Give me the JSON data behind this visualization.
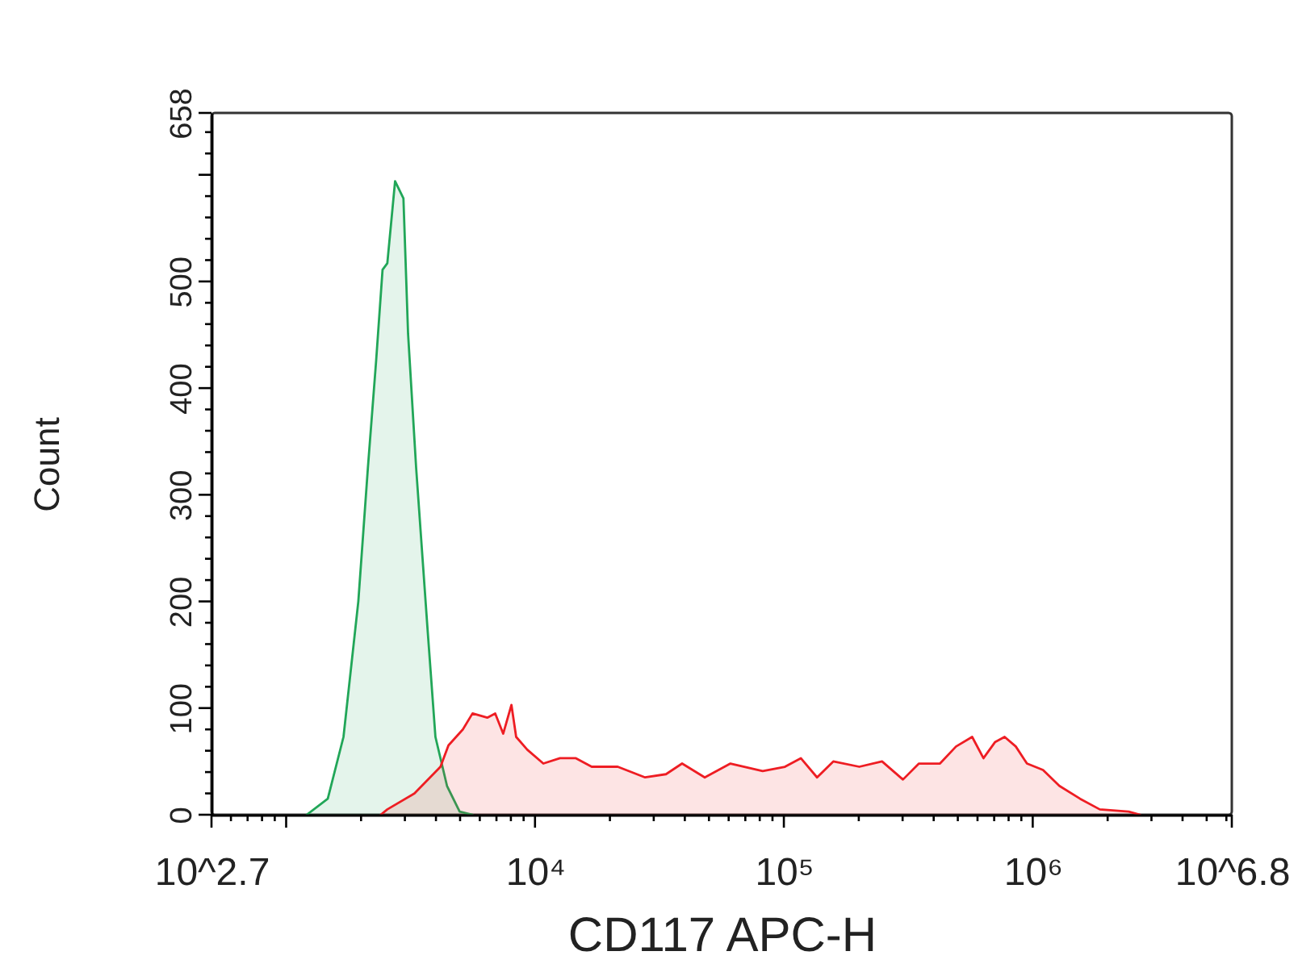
{
  "chart_data": {
    "type": "area",
    "xlabel": "CD117 APC-H",
    "ylabel": "Count",
    "log": "x",
    "xlim": [
      501.2,
      6309573
    ],
    "ylim": [
      0,
      658
    ],
    "xticks": [
      {
        "value": 501.2,
        "label": "10^2.7"
      },
      {
        "value": 600,
        "label": null
      },
      {
        "value": 700,
        "label": null
      },
      {
        "value": 800,
        "label": null
      },
      {
        "value": 900,
        "label": null
      },
      {
        "value": 1000,
        "label": null
      },
      {
        "value": 2000,
        "label": null
      },
      {
        "value": 3000,
        "label": null
      },
      {
        "value": 4000,
        "label": null
      },
      {
        "value": 5000,
        "label": null
      },
      {
        "value": 6000,
        "label": null
      },
      {
        "value": 7000,
        "label": null
      },
      {
        "value": 8000,
        "label": null
      },
      {
        "value": 9000,
        "label": null
      },
      {
        "value": 10000,
        "label": "10⁴"
      },
      {
        "value": 20000,
        "label": null
      },
      {
        "value": 30000,
        "label": null
      },
      {
        "value": 40000,
        "label": null
      },
      {
        "value": 50000,
        "label": null
      },
      {
        "value": 60000,
        "label": null
      },
      {
        "value": 70000,
        "label": null
      },
      {
        "value": 80000,
        "label": null
      },
      {
        "value": 90000,
        "label": null
      },
      {
        "value": 100000,
        "label": "10⁵"
      },
      {
        "value": 200000,
        "label": null
      },
      {
        "value": 300000,
        "label": null
      },
      {
        "value": 400000,
        "label": null
      },
      {
        "value": 500000,
        "label": null
      },
      {
        "value": 600000,
        "label": null
      },
      {
        "value": 700000,
        "label": null
      },
      {
        "value": 800000,
        "label": null
      },
      {
        "value": 900000,
        "label": null
      },
      {
        "value": 1000000,
        "label": "10⁶"
      },
      {
        "value": 2000000,
        "label": null
      },
      {
        "value": 3000000,
        "label": null
      },
      {
        "value": 4000000,
        "label": null
      },
      {
        "value": 5000000,
        "label": null
      },
      {
        "value": 6000000,
        "label": null
      },
      {
        "value": 6309573,
        "label": "10^6.8"
      }
    ],
    "yticks": [
      0,
      {
        "value": 20,
        "label": null
      },
      {
        "value": 40,
        "label": null
      },
      {
        "value": 60,
        "label": null
      },
      {
        "value": 80,
        "label": null
      },
      100,
      {
        "value": 120,
        "label": null
      },
      {
        "value": 140,
        "label": null
      },
      {
        "value": 160,
        "label": null
      },
      {
        "value": 180,
        "label": null
      },
      200,
      {
        "value": 220,
        "label": null
      },
      {
        "value": 240,
        "label": null
      },
      {
        "value": 260,
        "label": null
      },
      {
        "value": 280,
        "label": null
      },
      300,
      {
        "value": 320,
        "label": null
      },
      {
        "value": 340,
        "label": null
      },
      {
        "value": 360,
        "label": null
      },
      {
        "value": 380,
        "label": null
      },
      400,
      {
        "value": 420,
        "label": null
      },
      {
        "value": 440,
        "label": null
      },
      {
        "value": 460,
        "label": null
      },
      {
        "value": 480,
        "label": null
      },
      500,
      {
        "value": 520,
        "label": null
      },
      {
        "value": 540,
        "label": null
      },
      {
        "value": 560,
        "label": null
      },
      {
        "value": 580,
        "label": null
      },
      {
        "value": 600,
        "label": null
      },
      {
        "value": 620,
        "label": null
      },
      {
        "value": 640,
        "label": null
      },
      658
    ],
    "series": [
      {
        "color": "#21a658",
        "x": [
          1210,
          1470,
          1700,
          1950,
          2130,
          2300,
          2440,
          2550,
          2740,
          2960,
          3090,
          3330,
          3700,
          3980,
          4430,
          4980,
          5610
        ],
        "values": [
          0,
          15,
          73,
          200,
          325,
          426,
          511,
          517,
          594,
          578,
          451,
          325,
          174,
          73,
          27,
          3,
          0
        ]
      },
      {
        "color": "#ee1d23",
        "x": [
          2400,
          2550,
          3280,
          4170,
          4490,
          5130,
          5610,
          6430,
          6920,
          7450,
          8040,
          8400,
          9310,
          10800,
          12600,
          14600,
          16900,
          21500,
          27700,
          33600,
          39000,
          48100,
          61000,
          82200,
          101000,
          117000,
          136000,
          158000,
          201000,
          248000,
          301000,
          349000,
          424000,
          492000,
          571000,
          634000,
          705000,
          771000,
          855000,
          948000,
          1100000,
          1280000,
          1550000,
          1860000,
          2430000,
          2700000
        ],
        "values": [
          0,
          5,
          20,
          45,
          65,
          80,
          95,
          91,
          95,
          76,
          103,
          73,
          61,
          48,
          53,
          53,
          45,
          45,
          35,
          38,
          48,
          35,
          48,
          41,
          45,
          53,
          35,
          50,
          45,
          50,
          33,
          48,
          48,
          64,
          73,
          53,
          68,
          73,
          64,
          48,
          42,
          27,
          15,
          5,
          3,
          0
        ]
      }
    ]
  }
}
